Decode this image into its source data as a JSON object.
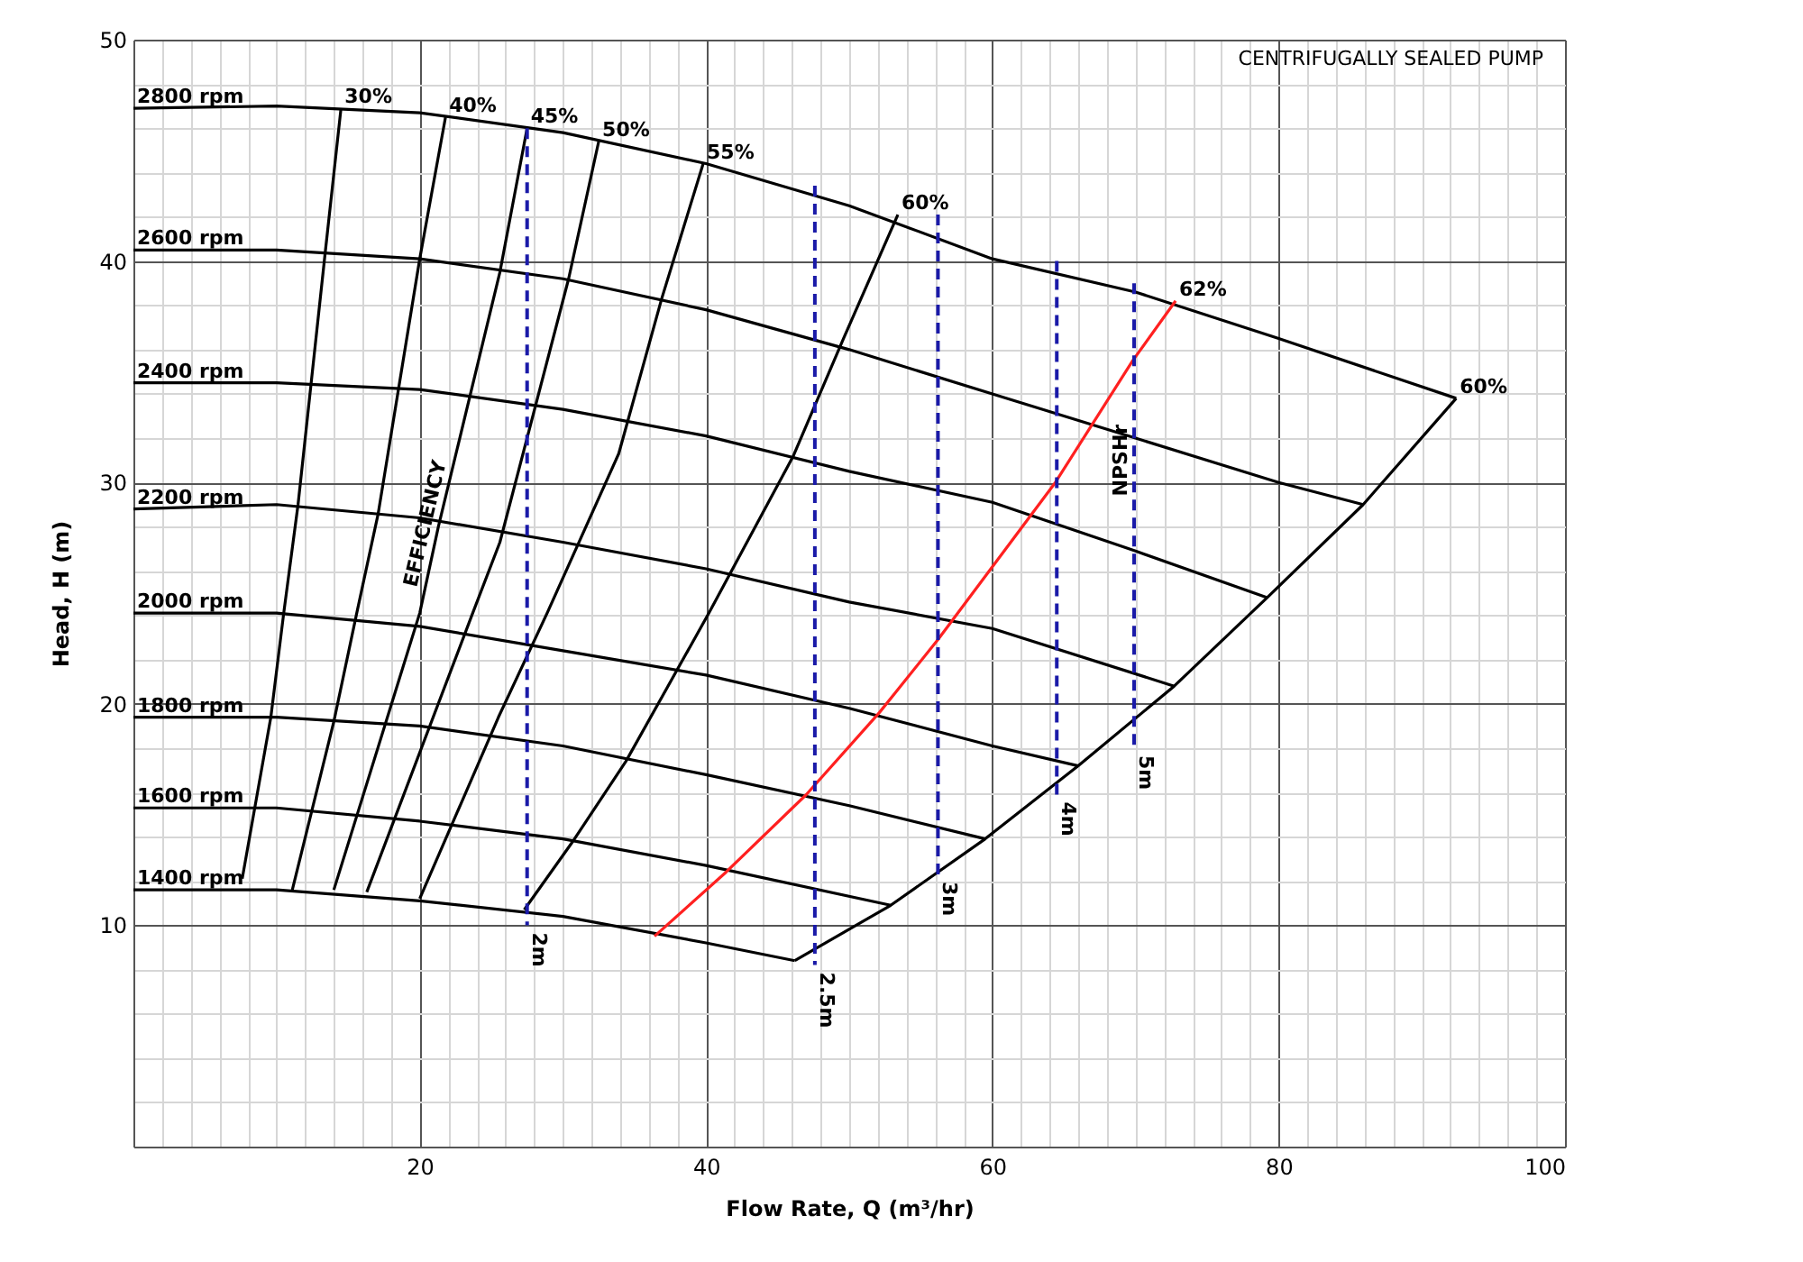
{
  "chart_data": {
    "type": "line",
    "xlabel": "Flow Rate, Q (m³/hr)",
    "ylabel": "Head, H (m)",
    "xlim": [
      0,
      100
    ],
    "ylim": [
      0,
      50
    ],
    "xticks": [
      {
        "value": 0,
        "label": null
      },
      {
        "value": 2,
        "label": null
      },
      {
        "value": 4,
        "label": null
      },
      {
        "value": 6,
        "label": null
      },
      {
        "value": 8,
        "label": null
      },
      {
        "value": 10,
        "label": null
      },
      {
        "value": 12,
        "label": null
      },
      {
        "value": 14,
        "label": null
      },
      {
        "value": 16,
        "label": null
      },
      {
        "value": 18,
        "label": null
      },
      20,
      {
        "value": 22,
        "label": null
      },
      {
        "value": 24,
        "label": null
      },
      {
        "value": 26,
        "label": null
      },
      {
        "value": 28,
        "label": null
      },
      {
        "value": 30,
        "label": null
      },
      {
        "value": 32,
        "label": null
      },
      {
        "value": 34,
        "label": null
      },
      {
        "value": 36,
        "label": null
      },
      {
        "value": 38,
        "label": null
      },
      40,
      {
        "value": 42,
        "label": null
      },
      {
        "value": 44,
        "label": null
      },
      {
        "value": 46,
        "label": null
      },
      {
        "value": 48,
        "label": null
      },
      {
        "value": 50,
        "label": null
      },
      {
        "value": 52,
        "label": null
      },
      {
        "value": 54,
        "label": null
      },
      {
        "value": 56,
        "label": null
      },
      {
        "value": 58,
        "label": null
      },
      60,
      {
        "value": 62,
        "label": null
      },
      {
        "value": 64,
        "label": null
      },
      {
        "value": 66,
        "label": null
      },
      {
        "value": 68,
        "label": null
      },
      {
        "value": 70,
        "label": null
      },
      {
        "value": 72,
        "label": null
      },
      {
        "value": 74,
        "label": null
      },
      {
        "value": 76,
        "label": null
      },
      {
        "value": 78,
        "label": null
      },
      80,
      {
        "value": 82,
        "label": null
      },
      {
        "value": 84,
        "label": null
      },
      {
        "value": 86,
        "label": null
      },
      {
        "value": 88,
        "label": null
      },
      {
        "value": 90,
        "label": null
      },
      {
        "value": 92,
        "label": null
      },
      {
        "value": 94,
        "label": null
      },
      {
        "value": 96,
        "label": null
      },
      {
        "value": 98,
        "label": null
      },
      100
    ],
    "yticks": [
      {
        "value": 0,
        "label": null
      },
      {
        "value": 2,
        "label": null
      },
      {
        "value": 4,
        "label": null
      },
      {
        "value": 6,
        "label": null
      },
      {
        "value": 8,
        "label": null
      },
      10,
      {
        "value": 12,
        "label": null
      },
      {
        "value": 14,
        "label": null
      },
      {
        "value": 16,
        "label": null
      },
      {
        "value": 18,
        "label": null
      },
      20,
      {
        "value": 22,
        "label": null
      },
      {
        "value": 24,
        "label": null
      },
      {
        "value": 26,
        "label": null
      },
      {
        "value": 28,
        "label": null
      },
      30,
      {
        "value": 32,
        "label": null
      },
      {
        "value": 34,
        "label": null
      },
      {
        "value": 36,
        "label": null
      },
      {
        "value": 38,
        "label": null
      },
      40,
      {
        "value": 42,
        "label": null
      },
      {
        "value": 44,
        "label": null
      },
      {
        "value": 46,
        "label": null
      },
      {
        "value": 48,
        "label": null
      },
      50
    ],
    "grid": true,
    "series": [
      {
        "color": "#000000",
        "x": [
          14.5,
          13.4,
          11.5,
          10.5,
          9.6,
          7.6
        ],
        "values": [
          46.9,
          40.4,
          29.0,
          24.1,
          19.4,
          12.1
        ]
      },
      {
        "color": "#000000",
        "x": [
          21.8,
          20.0,
          17.1,
          15.6,
          14.0,
          11.1
        ],
        "values": [
          46.5,
          40.1,
          28.6,
          24.1,
          19.2,
          11.6
        ]
      },
      {
        "color": "#000000",
        "x": [
          27.5,
          25.6,
          21.3,
          20.0,
          14.0
        ],
        "values": [
          46.0,
          39.5,
          28.0,
          24.1,
          11.6
        ]
      },
      {
        "color": "#000000",
        "x": [
          32.5,
          30.4,
          25.6,
          23.7,
          16.3
        ],
        "values": [
          45.4,
          39.2,
          27.3,
          24.1,
          11.5
        ]
      },
      {
        "color": "#000000",
        "x": [
          39.8,
          36.9,
          33.9,
          28.9,
          25.5,
          20.0
        ],
        "values": [
          44.4,
          38.3,
          31.3,
          24.1,
          19.4,
          11.2
        ]
      },
      {
        "color": "#000000",
        "x": [
          53.4,
          49.6,
          46.1,
          40.2,
          34.4,
          30.6,
          27.3
        ],
        "values": [
          42.1,
          36.5,
          31.2,
          24.1,
          17.4,
          13.7,
          10.7
        ]
      },
      {
        "color": "#000000",
        "x": [
          46.2,
          52.9,
          59.5,
          66.0,
          72.7,
          79.2,
          85.9,
          92.4
        ],
        "values": [
          8.4,
          10.9,
          13.9,
          17.2,
          20.8,
          24.8,
          29.0,
          33.8
        ]
      },
      {
        "color": "#000000",
        "x": [
          0,
          10,
          20,
          30,
          40,
          50,
          60,
          70,
          80,
          92.4
        ],
        "values": [
          46.9,
          47.0,
          46.7,
          45.8,
          44.4,
          42.5,
          40.1,
          38.6,
          36.5,
          33.8
        ]
      },
      {
        "color": "#000000",
        "x": [
          0,
          10,
          20,
          30,
          40,
          50,
          60,
          70,
          80,
          85.9
        ],
        "values": [
          40.5,
          40.5,
          40.1,
          39.2,
          37.8,
          36.0,
          34.0,
          32.0,
          30.0,
          29.0
        ]
      },
      {
        "color": "#000000",
        "x": [
          0,
          10,
          20,
          30,
          40,
          50,
          60,
          70,
          79.2
        ],
        "values": [
          34.5,
          34.5,
          34.2,
          33.3,
          32.1,
          30.5,
          29.1,
          26.9,
          24.8
        ]
      },
      {
        "color": "#000000",
        "x": [
          0,
          10,
          20,
          30,
          40,
          50,
          60,
          72.7
        ],
        "values": [
          28.8,
          29.0,
          28.4,
          27.3,
          26.1,
          24.6,
          23.4,
          20.8
        ]
      },
      {
        "color": "#000000",
        "x": [
          0,
          10,
          20,
          30,
          40,
          50,
          60,
          66.0
        ],
        "values": [
          24.1,
          24.1,
          23.5,
          22.4,
          21.3,
          19.8,
          18.1,
          17.2
        ]
      },
      {
        "color": "#000000",
        "x": [
          0,
          10,
          20,
          30,
          40,
          50,
          59.5
        ],
        "values": [
          19.4,
          19.4,
          19.0,
          18.1,
          16.8,
          15.4,
          13.9
        ]
      },
      {
        "color": "#000000",
        "x": [
          0,
          10,
          20,
          30,
          40,
          52.9
        ],
        "values": [
          15.3,
          15.3,
          14.7,
          13.9,
          12.7,
          10.9
        ]
      },
      {
        "color": "#000000",
        "x": [
          0,
          10,
          20,
          30,
          40,
          46.2
        ],
        "values": [
          11.6,
          11.6,
          11.1,
          10.4,
          9.2,
          8.4
        ]
      },
      {
        "color": "#ff2020",
        "x": [
          36.4,
          41.4,
          47.0,
          52.1,
          56.2,
          64.4,
          69.8,
          72.8
        ],
        "values": [
          9.5,
          12.4,
          15.9,
          19.6,
          22.9,
          30.0,
          35.5,
          38.2
        ]
      },
      {
        "color": "#1a1aa8",
        "line_style": "dashed",
        "x": [
          27.5,
          27.5
        ],
        "values": [
          46.0,
          10.0
        ]
      },
      {
        "color": "#1a1aa8",
        "line_style": "dashed",
        "x": [
          47.6,
          47.6
        ],
        "values": [
          43.4,
          8.2
        ]
      },
      {
        "color": "#1a1aa8",
        "line_style": "dashed",
        "x": [
          56.2,
          56.2
        ],
        "values": [
          42.1,
          12.3
        ]
      },
      {
        "color": "#1a1aa8",
        "line_style": "dashed",
        "x": [
          64.5,
          64.5
        ],
        "values": [
          40.0,
          15.9
        ]
      },
      {
        "color": "#1a1aa8",
        "line_style": "dashed",
        "x": [
          69.9,
          69.9,
          69.9
        ],
        "values": [
          39.0,
          31.0,
          18.0
        ]
      }
    ],
    "annotations": [
      "CENTRIFUGALLY SEALED PUMP",
      {
        "text": "2800 rpm",
        "x": 0,
        "y": 46.9
      },
      {
        "text": "2600 rpm",
        "x": 0,
        "y": 40.5
      },
      {
        "text": "2400 rpm",
        "x": 0,
        "y": 34.5
      },
      {
        "text": "2200 rpm",
        "x": 0,
        "y": 28.8
      },
      {
        "text": "2000 rpm",
        "x": 0,
        "y": 24.1
      },
      {
        "text": "1800 rpm",
        "x": 0,
        "y": 19.4
      },
      {
        "text": "1600 rpm",
        "x": 0,
        "y": 15.3
      },
      {
        "text": "1400 rpm",
        "x": 0,
        "y": 11.6
      },
      {
        "text": "30%",
        "x": 14.5,
        "y": 46.9
      },
      {
        "text": "40%",
        "x": 21.8,
        "y": 46.5
      },
      {
        "text": "45%",
        "x": 27.5,
        "y": 46.0
      },
      {
        "text": "50%",
        "x": 32.5,
        "y": 45.4
      },
      {
        "text": "55%",
        "x": 39.8,
        "y": 44.4
      },
      {
        "text": "60%",
        "x": 53.4,
        "y": 42.1
      },
      {
        "text": "62%",
        "x": 72.8,
        "y": 38.2
      },
      {
        "text": "60%",
        "x": 92.4,
        "y": 33.8
      },
      {
        "text": "EFFICIENCY",
        "x": 21.3,
        "y": 28.0
      },
      {
        "text": "NPSHr",
        "x": 69.9,
        "y": 31.0
      },
      {
        "text": "2m",
        "x": 27.5,
        "y": 10.0
      },
      {
        "text": "2.5m",
        "x": 47.6,
        "y": 8.2
      },
      {
        "text": "3m",
        "x": 56.2,
        "y": 12.3
      },
      {
        "text": "4m",
        "x": 64.5,
        "y": 15.9
      },
      {
        "text": "5m",
        "x": 69.9,
        "y": 18.0
      }
    ]
  }
}
